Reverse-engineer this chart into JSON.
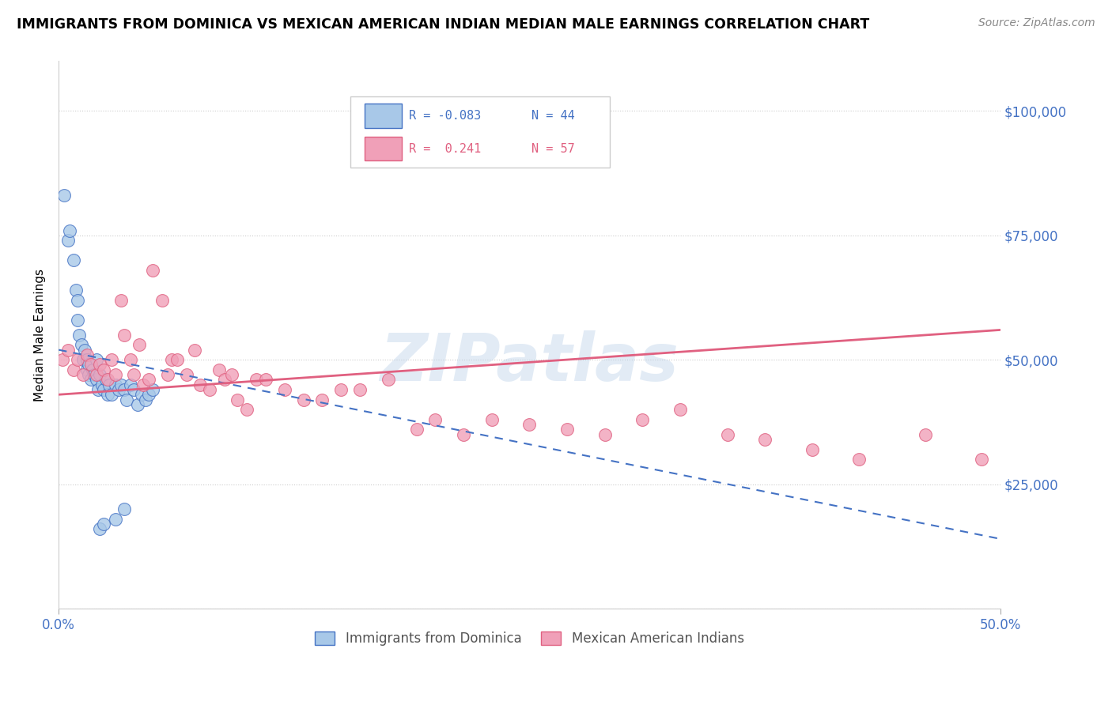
{
  "title": "IMMIGRANTS FROM DOMINICA VS MEXICAN AMERICAN INDIAN MEDIAN MALE EARNINGS CORRELATION CHART",
  "source_text": "Source: ZipAtlas.com",
  "ylabel": "Median Male Earnings",
  "xlim": [
    0.0,
    0.5
  ],
  "ylim": [
    0,
    110000
  ],
  "yticks": [
    0,
    25000,
    50000,
    75000,
    100000
  ],
  "ytick_labels": [
    "",
    "$25,000",
    "$50,000",
    "$75,000",
    "$100,000"
  ],
  "xtick_labels": [
    "0.0%",
    "50.0%"
  ],
  "xtick_pos": [
    0.0,
    0.5
  ],
  "blue_label": "Immigrants from Dominica",
  "pink_label": "Mexican American Indians",
  "blue_R": "-0.083",
  "blue_N": "44",
  "pink_R": "0.241",
  "pink_N": "57",
  "blue_color": "#a8c8e8",
  "pink_color": "#f0a0b8",
  "blue_line_color": "#4472c4",
  "pink_line_color": "#e06080",
  "watermark": "ZIPatlas",
  "blue_line_x0": 0.0,
  "blue_line_y0": 52000,
  "blue_line_x1": 0.5,
  "blue_line_y1": 14000,
  "pink_line_x0": 0.0,
  "pink_line_y0": 43000,
  "pink_line_x1": 0.5,
  "pink_line_y1": 56000,
  "blue_scatter_x": [
    0.003,
    0.005,
    0.006,
    0.008,
    0.009,
    0.01,
    0.01,
    0.011,
    0.012,
    0.013,
    0.014,
    0.015,
    0.015,
    0.016,
    0.016,
    0.017,
    0.018,
    0.019,
    0.02,
    0.02,
    0.021,
    0.022,
    0.023,
    0.024,
    0.025,
    0.026,
    0.027,
    0.028,
    0.03,
    0.032,
    0.033,
    0.035,
    0.036,
    0.038,
    0.04,
    0.042,
    0.044,
    0.046,
    0.048,
    0.05,
    0.022,
    0.024,
    0.03,
    0.035
  ],
  "blue_scatter_y": [
    83000,
    74000,
    76000,
    70000,
    64000,
    62000,
    58000,
    55000,
    53000,
    50000,
    52000,
    48000,
    50000,
    47000,
    49000,
    46000,
    48000,
    47000,
    46000,
    50000,
    44000,
    47000,
    45000,
    44000,
    46000,
    43000,
    45000,
    43000,
    45000,
    44000,
    45000,
    44000,
    42000,
    45000,
    44000,
    41000,
    43000,
    42000,
    43000,
    44000,
    16000,
    17000,
    18000,
    20000
  ],
  "pink_scatter_x": [
    0.002,
    0.005,
    0.008,
    0.01,
    0.013,
    0.015,
    0.017,
    0.02,
    0.022,
    0.024,
    0.026,
    0.028,
    0.03,
    0.033,
    0.035,
    0.038,
    0.04,
    0.043,
    0.045,
    0.048,
    0.05,
    0.055,
    0.058,
    0.06,
    0.063,
    0.068,
    0.072,
    0.075,
    0.08,
    0.085,
    0.088,
    0.092,
    0.095,
    0.1,
    0.105,
    0.11,
    0.12,
    0.13,
    0.14,
    0.15,
    0.16,
    0.175,
    0.19,
    0.2,
    0.215,
    0.23,
    0.25,
    0.27,
    0.29,
    0.31,
    0.33,
    0.355,
    0.375,
    0.4,
    0.425,
    0.46,
    0.49
  ],
  "pink_scatter_y": [
    50000,
    52000,
    48000,
    50000,
    47000,
    51000,
    49000,
    47000,
    49000,
    48000,
    46000,
    50000,
    47000,
    62000,
    55000,
    50000,
    47000,
    53000,
    45000,
    46000,
    68000,
    62000,
    47000,
    50000,
    50000,
    47000,
    52000,
    45000,
    44000,
    48000,
    46000,
    47000,
    42000,
    40000,
    46000,
    46000,
    44000,
    42000,
    42000,
    44000,
    44000,
    46000,
    36000,
    38000,
    35000,
    38000,
    37000,
    36000,
    35000,
    38000,
    40000,
    35000,
    34000,
    32000,
    30000,
    35000,
    30000
  ]
}
